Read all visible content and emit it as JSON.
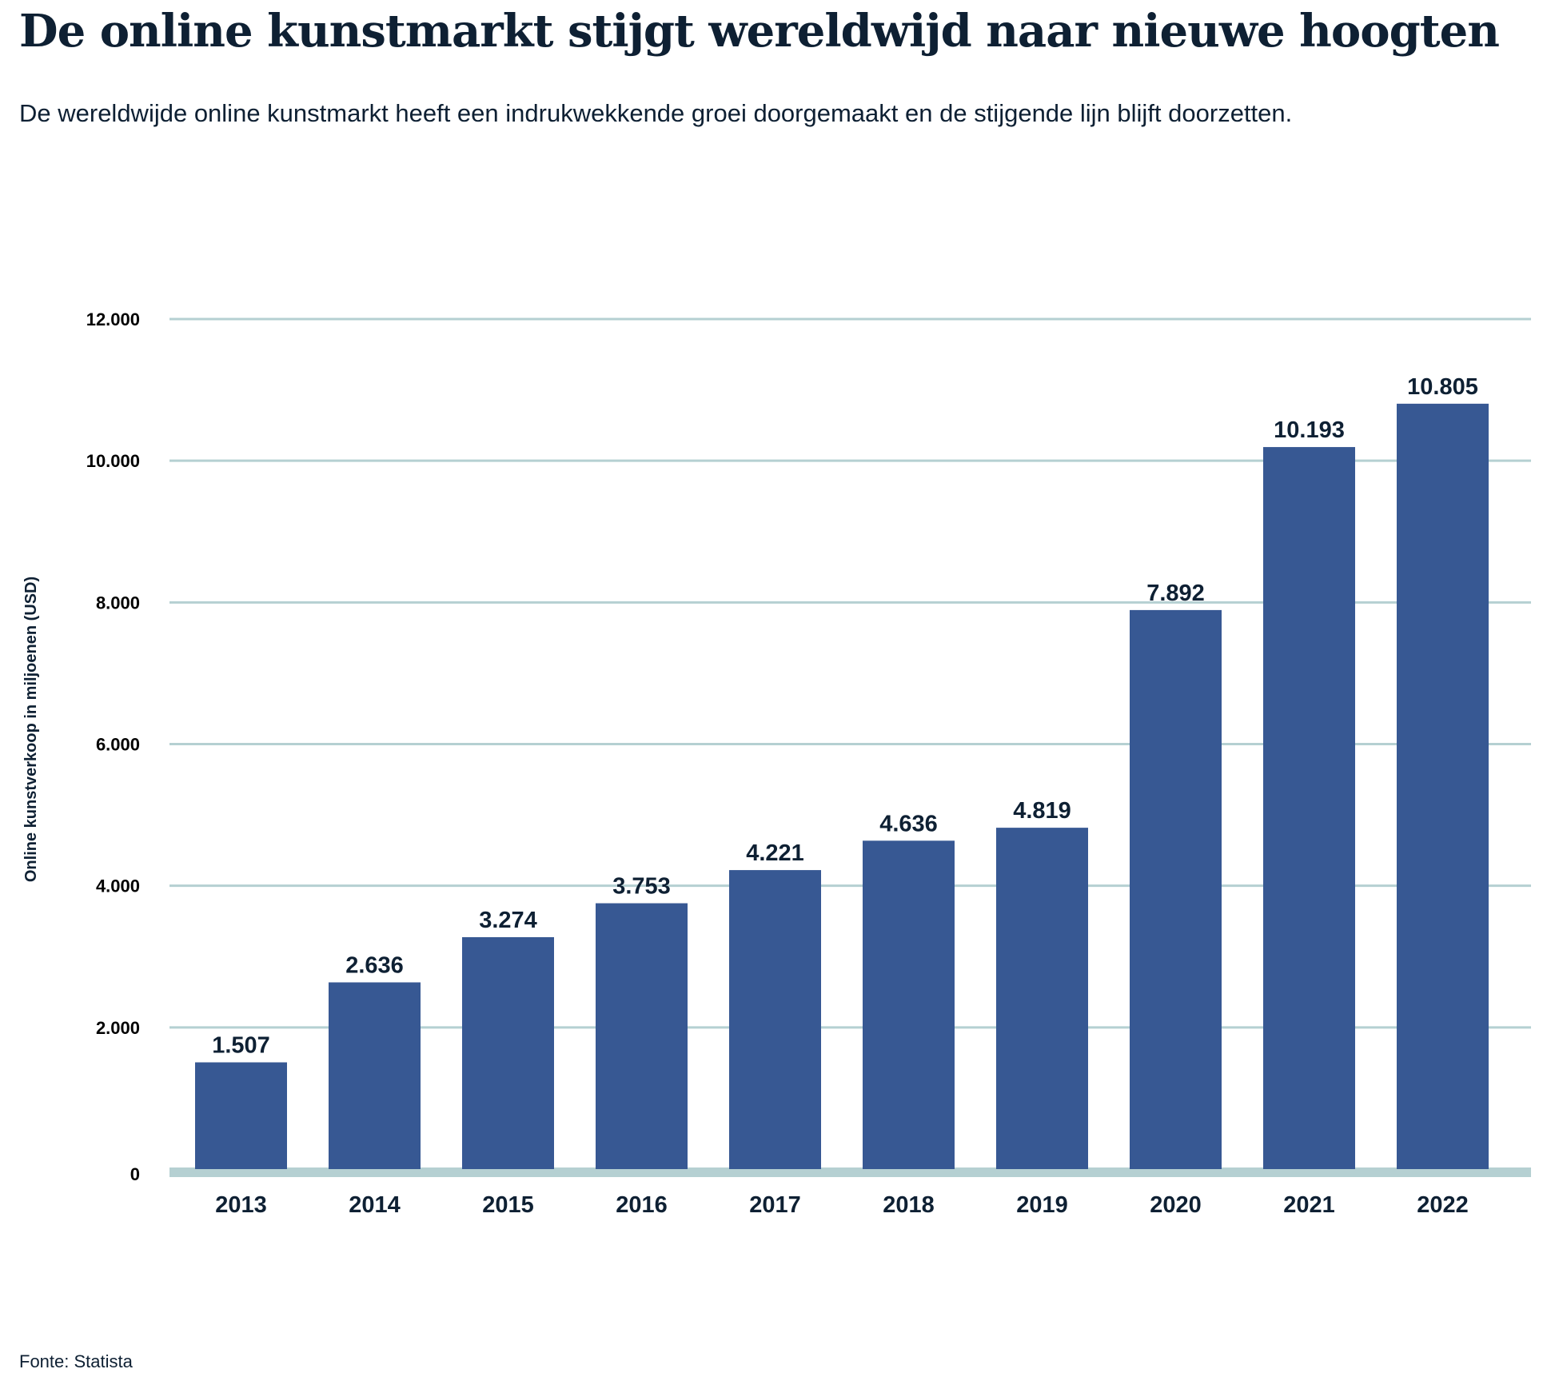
{
  "title": "De online kunstmarkt stijgt wereldwijd naar nieuwe hoogten",
  "subtitle": "De wereldwijde online kunstmarkt heeft een indrukwekkende groei doorgemaakt en de stijgende lijn blijft doorzetten.",
  "source": "Fonte: Statista",
  "colors": {
    "bar": "#375893",
    "grid": "#b5d0d2",
    "text": "#0e2033"
  },
  "chart_data": {
    "type": "bar",
    "title": "",
    "xlabel": "",
    "ylabel": "Online kunstverkoop in miljoenen (USD)",
    "ylim": [
      0,
      12000
    ],
    "grid": true,
    "yticks": [
      0,
      2000,
      4000,
      6000,
      8000,
      10000,
      12000
    ],
    "ytick_labels": [
      "0",
      "2.000",
      "4.000",
      "6.000",
      "8.000",
      "10.000",
      "12.000"
    ],
    "categories": [
      "2013",
      "2014",
      "2015",
      "2016",
      "2017",
      "2018",
      "2019",
      "2020",
      "2021",
      "2022"
    ],
    "values": [
      1507,
      2636,
      3274,
      3753,
      4221,
      4636,
      4819,
      7892,
      10193,
      10805
    ],
    "data_labels": [
      "1.507",
      "2.636",
      "3.274",
      "3.753",
      "4.221",
      "4.636",
      "4.819",
      "7.892",
      "10.193",
      "10.805"
    ]
  }
}
